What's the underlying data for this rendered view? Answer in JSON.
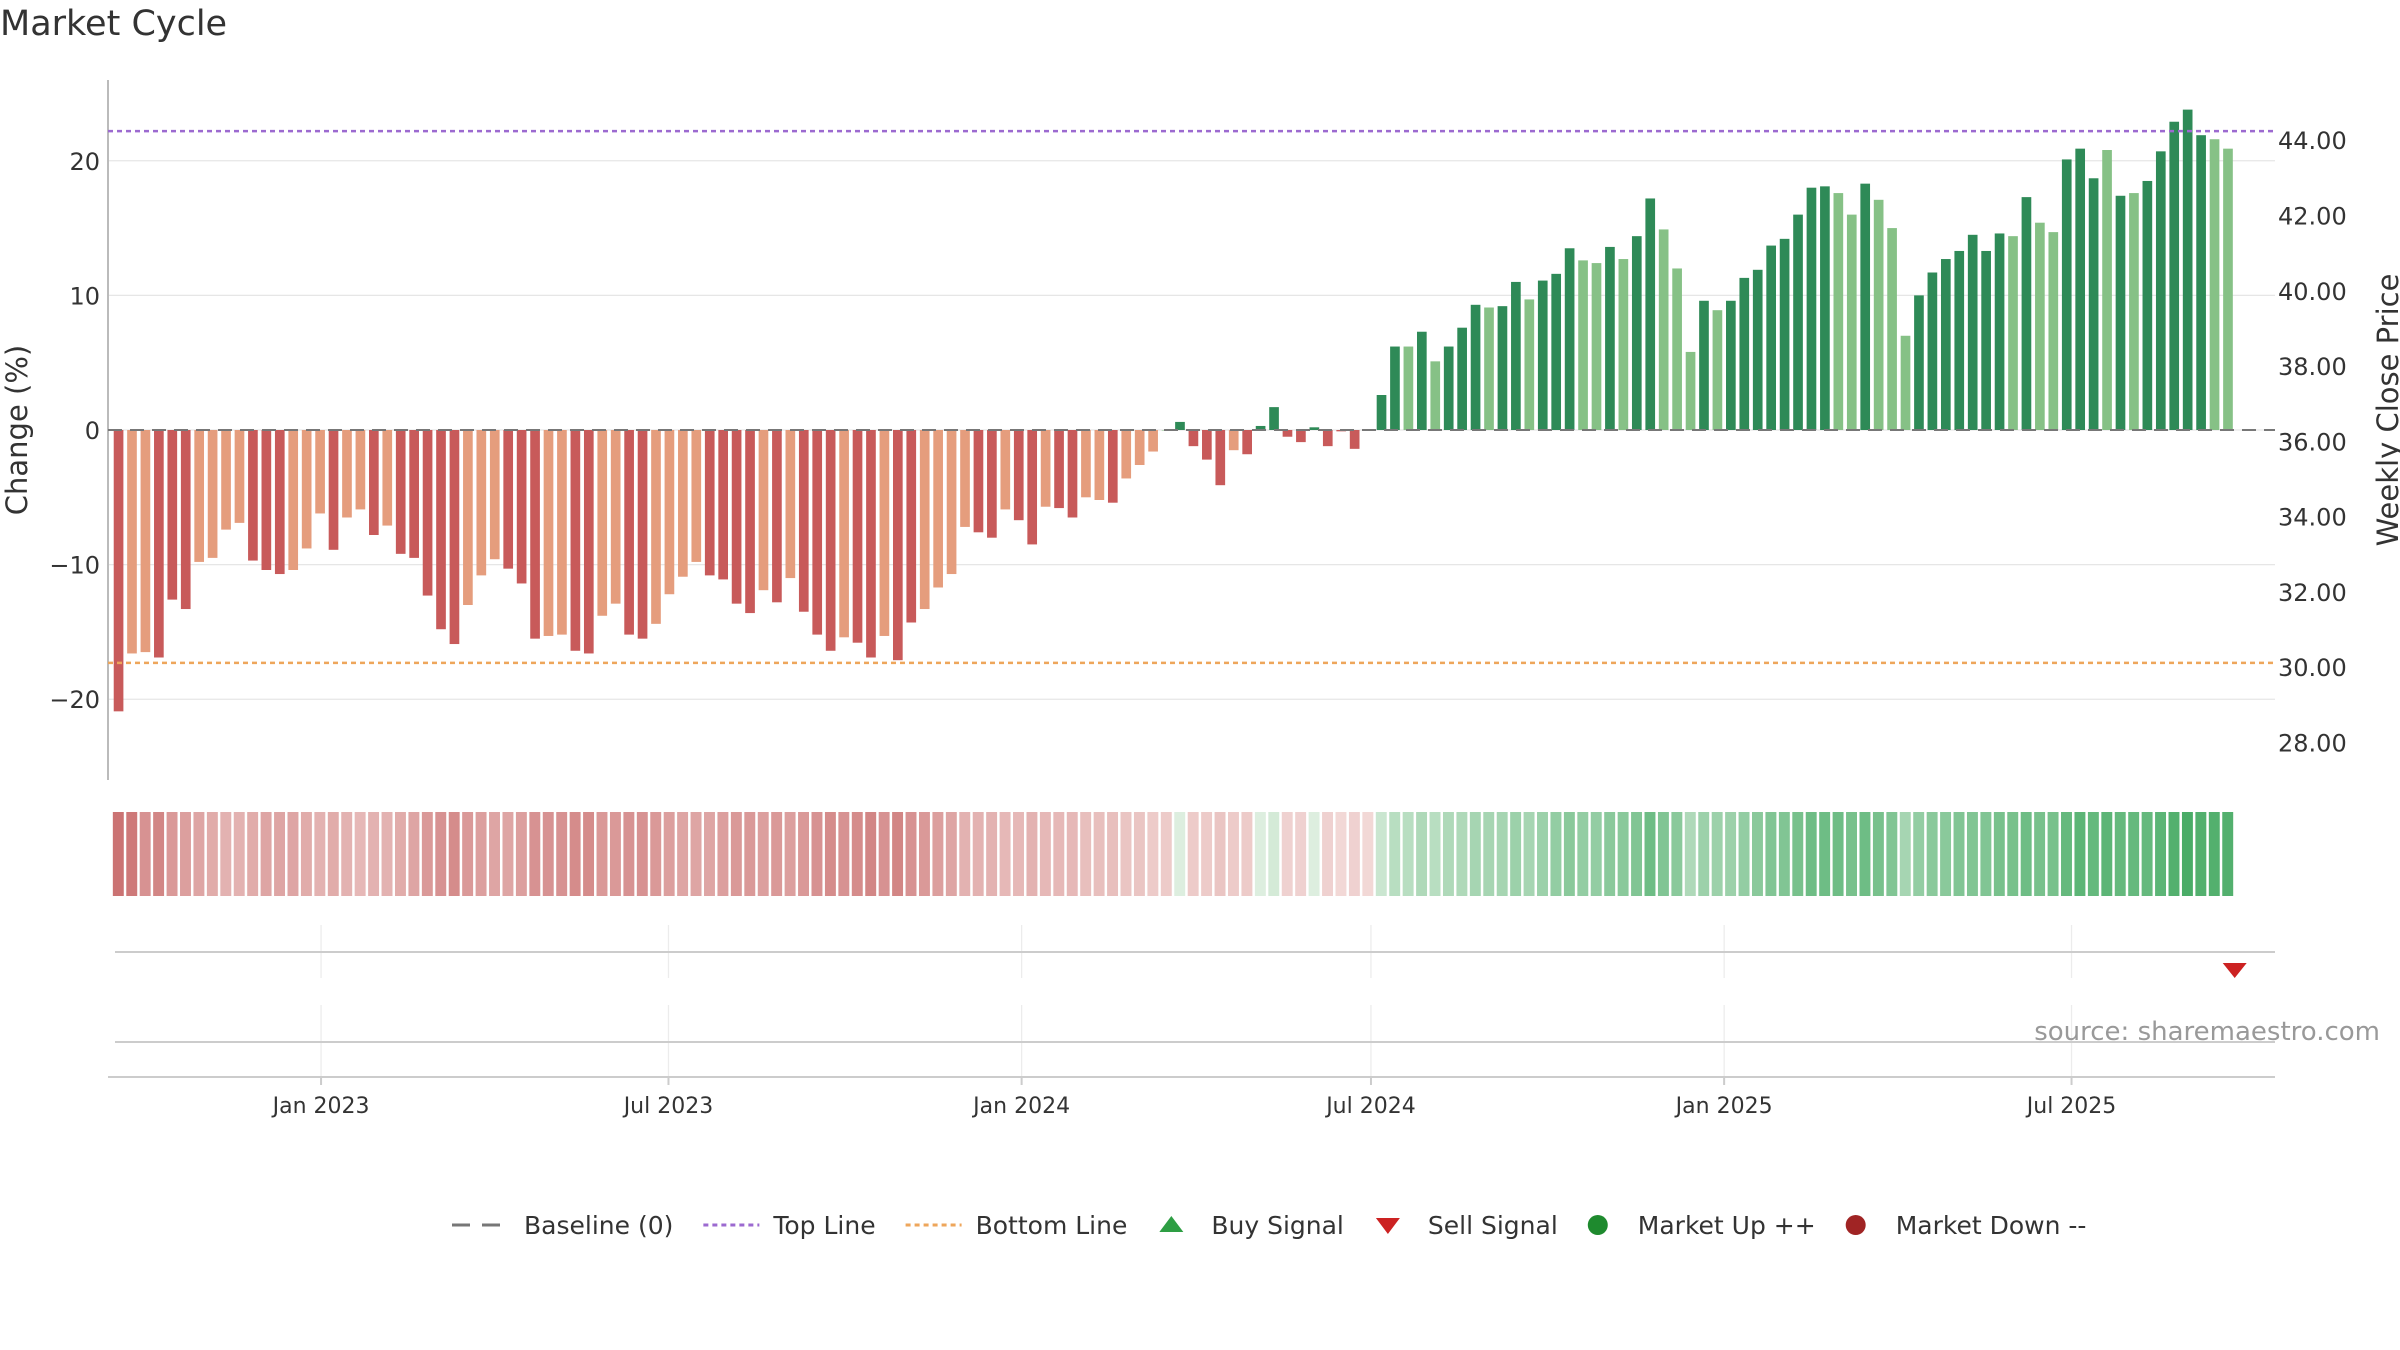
{
  "title": "Market Cycle",
  "source": "source: sharemaestro.com",
  "colors": {
    "neg_dark": "#c85a5a",
    "neg_light": "#e59d7d",
    "pos_dark": "#2e8a57",
    "pos_light": "#86c186",
    "top_line": "#9c6ad0",
    "bottom_line": "#eea65b",
    "baseline": "#777777",
    "buy": "#2e9e44",
    "sell": "#cc2222",
    "market_up": "#1e8a2e",
    "market_down": "#a02424"
  },
  "legend": [
    {
      "label": "Baseline (0)",
      "icon": "dash-line-icon",
      "color": "#777777"
    },
    {
      "label": "Top Line",
      "icon": "dotted-line-icon",
      "color": "#9c6ad0"
    },
    {
      "label": "Bottom Line",
      "icon": "dotted-line-icon",
      "color": "#eea65b"
    },
    {
      "label": "Buy Signal",
      "icon": "triangle-up-icon",
      "color": "#2e9e44"
    },
    {
      "label": "Sell Signal",
      "icon": "triangle-down-icon",
      "color": "#cc2222"
    },
    {
      "label": "Market Up ++",
      "icon": "circle-icon",
      "color": "#1e8a2e"
    },
    {
      "label": "Market Down --",
      "icon": "circle-icon",
      "color": "#a02424"
    }
  ],
  "chart_data": {
    "type": "bar",
    "ylabel": "Change (%)",
    "y2label": "Weekly Close Price",
    "ylim": [
      -26,
      26
    ],
    "yticks": [
      -20,
      -10,
      0,
      10,
      20
    ],
    "ytick_labels": [
      "−20",
      "−10",
      "0",
      "10",
      "20"
    ],
    "y2lim": [
      27.0,
      45.6
    ],
    "y2ticks": [
      28,
      30,
      32,
      34,
      36,
      38,
      40,
      42,
      44
    ],
    "y2tick_labels": [
      "28.00",
      "30.00",
      "32.00",
      "34.00",
      "36.00",
      "38.00",
      "40.00",
      "42.00",
      "44.00"
    ],
    "top_line": 22.2,
    "bottom_line": -17.3,
    "x_range": [
      "2022-09-12",
      "2025-10-15"
    ],
    "xticks": [
      "2023-01-01",
      "2023-07-01",
      "2024-01-01",
      "2024-07-01",
      "2025-01-01",
      "2025-07-01"
    ],
    "xtick_labels": [
      "Jan 2023",
      "Jul 2023",
      "Jan 2024",
      "Jul 2024",
      "Jan 2025",
      "Jul 2025"
    ],
    "start_date": "2022-09-14",
    "weekly_changes": [
      -20.9,
      -16.6,
      -16.5,
      -16.9,
      -12.6,
      -13.3,
      -9.8,
      -9.5,
      -7.4,
      -6.9,
      -9.7,
      -10.4,
      -10.7,
      -10.4,
      -8.8,
      -6.2,
      -8.9,
      -6.5,
      -5.9,
      -7.8,
      -7.1,
      -9.2,
      -9.5,
      -12.3,
      -14.8,
      -15.9,
      -13.0,
      -10.8,
      -9.6,
      -10.3,
      -11.4,
      -15.5,
      -15.3,
      -15.2,
      -16.4,
      -16.6,
      -13.8,
      -12.9,
      -15.2,
      -15.5,
      -14.4,
      -12.2,
      -10.9,
      -9.8,
      -10.8,
      -11.1,
      -12.9,
      -13.6,
      -11.9,
      -12.8,
      -11.0,
      -13.5,
      -15.2,
      -16.4,
      -15.4,
      -15.8,
      -16.9,
      -15.3,
      -17.1,
      -14.3,
      -13.3,
      -11.7,
      -10.7,
      -7.2,
      -7.6,
      -8.0,
      -5.9,
      -6.7,
      -8.5,
      -5.7,
      -5.8,
      -6.5,
      -5.0,
      -5.2,
      -5.4,
      -3.6,
      -2.6,
      -1.6,
      0.0,
      0.6,
      -1.2,
      -2.2,
      -4.1,
      -1.5,
      -1.8,
      0.3,
      1.7,
      -0.5,
      -0.9,
      0.2,
      -1.2,
      -0.1,
      -1.4,
      0.0,
      2.6,
      6.2,
      6.2,
      7.3,
      5.1,
      6.2,
      7.6,
      9.3,
      9.1,
      9.2,
      11.0,
      9.7,
      11.1,
      11.6,
      13.5,
      12.6,
      12.4,
      13.6,
      12.7,
      14.4,
      17.2,
      14.9,
      12.0,
      5.8,
      9.6,
      8.9,
      9.6,
      11.3,
      11.9,
      13.7,
      14.2,
      16.0,
      18.0,
      18.1,
      17.6,
      16.0,
      18.3,
      17.1,
      15.0,
      7.0,
      10.0,
      11.7,
      12.7,
      13.3,
      14.5,
      13.3,
      14.6,
      14.4,
      17.3,
      15.4,
      14.7,
      20.1,
      20.9,
      18.7,
      20.8,
      17.4,
      17.6,
      18.5,
      20.7,
      22.9,
      23.8,
      21.9,
      21.6,
      20.9
    ],
    "weekly_shades": [
      "d",
      "l",
      "l",
      "d",
      "d",
      "d",
      "l",
      "l",
      "l",
      "l",
      "d",
      "d",
      "d",
      "l",
      "l",
      "l",
      "d",
      "l",
      "l",
      "d",
      "l",
      "d",
      "d",
      "d",
      "d",
      "d",
      "l",
      "l",
      "l",
      "d",
      "d",
      "d",
      "l",
      "l",
      "d",
      "d",
      "l",
      "l",
      "d",
      "d",
      "l",
      "l",
      "l",
      "l",
      "d",
      "d",
      "d",
      "d",
      "l",
      "d",
      "l",
      "d",
      "d",
      "d",
      "l",
      "d",
      "d",
      "l",
      "d",
      "d",
      "l",
      "l",
      "l",
      "l",
      "d",
      "d",
      "l",
      "d",
      "d",
      "l",
      "d",
      "d",
      "l",
      "l",
      "d",
      "l",
      "l",
      "l",
      "l",
      "d",
      "d",
      "d",
      "d",
      "l",
      "d",
      "d",
      "d",
      "d",
      "d",
      "d",
      "d",
      "d",
      "d",
      "d",
      "d",
      "d",
      "l",
      "d",
      "l",
      "d",
      "d",
      "d",
      "l",
      "d",
      "d",
      "l",
      "d",
      "d",
      "d",
      "l",
      "l",
      "d",
      "l",
      "d",
      "d",
      "l",
      "l",
      "l",
      "d",
      "l",
      "d",
      "d",
      "d",
      "d",
      "d",
      "d",
      "d",
      "d",
      "l",
      "l",
      "d",
      "l",
      "l",
      "l",
      "d",
      "d",
      "d",
      "d",
      "d",
      "d",
      "d",
      "l",
      "d",
      "l",
      "l",
      "d",
      "d",
      "d",
      "l",
      "d",
      "l",
      "d",
      "d",
      "d",
      "d",
      "d",
      "l",
      "l",
      "l"
    ],
    "heatmap_band": {
      "description_source": "color strip aligned with weekly bars",
      "values": [
        -0.85,
        -0.8,
        -0.6,
        -0.7,
        -0.55,
        -0.5,
        -0.45,
        -0.4,
        -0.35,
        -0.35,
        -0.4,
        -0.45,
        -0.45,
        -0.45,
        -0.4,
        -0.35,
        -0.4,
        -0.35,
        -0.3,
        -0.35,
        -0.35,
        -0.4,
        -0.45,
        -0.55,
        -0.6,
        -0.65,
        -0.55,
        -0.5,
        -0.45,
        -0.45,
        -0.5,
        -0.6,
        -0.6,
        -0.6,
        -0.65,
        -0.65,
        -0.55,
        -0.55,
        -0.6,
        -0.6,
        -0.55,
        -0.5,
        -0.45,
        -0.45,
        -0.45,
        -0.5,
        -0.55,
        -0.55,
        -0.5,
        -0.55,
        -0.5,
        -0.55,
        -0.6,
        -0.65,
        -0.6,
        -0.65,
        -0.7,
        -0.6,
        -0.7,
        -0.6,
        -0.55,
        -0.5,
        -0.45,
        -0.35,
        -0.35,
        -0.35,
        -0.3,
        -0.3,
        -0.35,
        -0.3,
        -0.3,
        -0.3,
        -0.25,
        -0.25,
        -0.25,
        -0.2,
        -0.2,
        -0.15,
        -0.15,
        0.05,
        -0.15,
        -0.15,
        -0.2,
        -0.15,
        -0.15,
        0.05,
        0.1,
        -0.1,
        -0.1,
        0.05,
        -0.1,
        -0.05,
        -0.1,
        -0.05,
        0.15,
        0.25,
        0.25,
        0.3,
        0.25,
        0.3,
        0.3,
        0.35,
        0.35,
        0.35,
        0.4,
        0.35,
        0.4,
        0.45,
        0.5,
        0.45,
        0.45,
        0.5,
        0.5,
        0.55,
        0.65,
        0.55,
        0.5,
        0.3,
        0.4,
        0.4,
        0.4,
        0.45,
        0.5,
        0.55,
        0.55,
        0.6,
        0.65,
        0.65,
        0.65,
        0.6,
        0.65,
        0.6,
        0.55,
        0.35,
        0.45,
        0.5,
        0.5,
        0.55,
        0.55,
        0.55,
        0.6,
        0.6,
        0.65,
        0.6,
        0.6,
        0.7,
        0.75,
        0.7,
        0.75,
        0.7,
        0.7,
        0.7,
        0.75,
        0.8,
        0.85,
        0.8,
        0.8,
        0.8
      ]
    },
    "signals": [
      {
        "type": "sell",
        "date": "2025-09-24"
      }
    ]
  }
}
